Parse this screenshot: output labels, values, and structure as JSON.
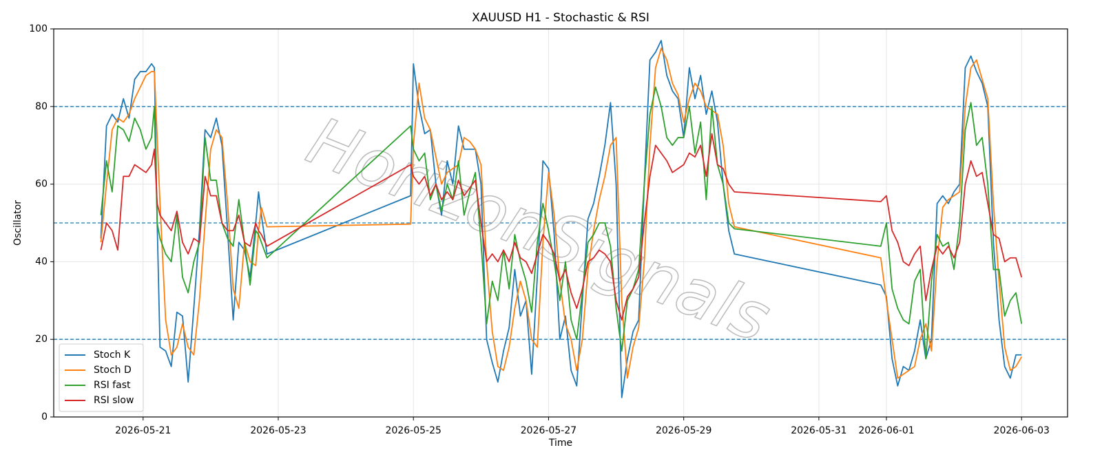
{
  "chart_data": {
    "type": "line",
    "title": "XAUUSD H1 - Stochastic & RSI",
    "x_label": "Time",
    "y_label": "Oscillator",
    "watermark": "HorizonSignals",
    "xlim": [
      "2026-05-19T16:15",
      "2026-06-03T16:20"
    ],
    "xticks": [
      "2026-05-21",
      "2026-05-23",
      "2026-05-25",
      "2026-05-27",
      "2026-05-29",
      "2026-05-31",
      "2026-06-01",
      "2026-06-03"
    ],
    "ylim": [
      0,
      100
    ],
    "yticks": [
      0,
      20,
      40,
      60,
      80,
      100
    ],
    "hlines": [
      20,
      50,
      80
    ],
    "hline_color": "#1f77b4",
    "grid": true,
    "legend": "lower left",
    "x": [
      "2026-05-20T09:00",
      "2026-05-20T11:00",
      "2026-05-20T13:00",
      "2026-05-20T15:00",
      "2026-05-20T17:00",
      "2026-05-20T19:00",
      "2026-05-20T21:00",
      "2026-05-20T23:00",
      "2026-05-21T01:00",
      "2026-05-21T03:00",
      "2026-05-21T04:00",
      "2026-05-21T05:00",
      "2026-05-21T06:00",
      "2026-05-21T08:00",
      "2026-05-21T10:00",
      "2026-05-21T12:00",
      "2026-05-21T14:00",
      "2026-05-21T16:00",
      "2026-05-21T18:00",
      "2026-05-21T20:00",
      "2026-05-21T22:00",
      "2026-05-22T00:00",
      "2026-05-22T02:00",
      "2026-05-22T04:00",
      "2026-05-22T06:00",
      "2026-05-22T08:00",
      "2026-05-22T10:00",
      "2026-05-22T12:00",
      "2026-05-22T14:00",
      "2026-05-22T16:00",
      "2026-05-22T17:00",
      "2026-05-22T18:00",
      "2026-05-22T20:00",
      "2026-05-24T23:00",
      "2026-05-25T00:00",
      "2026-05-25T02:00",
      "2026-05-25T04:00",
      "2026-05-25T06:00",
      "2026-05-25T08:00",
      "2026-05-25T10:00",
      "2026-05-25T12:00",
      "2026-05-25T14:00",
      "2026-05-25T16:00",
      "2026-05-25T18:00",
      "2026-05-25T20:00",
      "2026-05-25T22:00",
      "2026-05-26T00:00",
      "2026-05-26T02:00",
      "2026-05-26T04:00",
      "2026-05-26T06:00",
      "2026-05-26T08:00",
      "2026-05-26T10:00",
      "2026-05-26T12:00",
      "2026-05-26T14:00",
      "2026-05-26T16:00",
      "2026-05-26T18:00",
      "2026-05-26T20:00",
      "2026-05-26T22:00",
      "2026-05-27T00:00",
      "2026-05-27T02:00",
      "2026-05-27T04:00",
      "2026-05-27T06:00",
      "2026-05-27T08:00",
      "2026-05-27T10:00",
      "2026-05-27T12:00",
      "2026-05-27T14:00",
      "2026-05-27T16:00",
      "2026-05-27T18:00",
      "2026-05-27T20:00",
      "2026-05-27T22:00",
      "2026-05-28T00:00",
      "2026-05-28T02:00",
      "2026-05-28T04:00",
      "2026-05-28T06:00",
      "2026-05-28T08:00",
      "2026-05-28T10:00",
      "2026-05-28T12:00",
      "2026-05-28T14:00",
      "2026-05-28T16:00",
      "2026-05-28T18:00",
      "2026-05-28T20:00",
      "2026-05-28T22:00",
      "2026-05-29T00:00",
      "2026-05-29T02:00",
      "2026-05-29T04:00",
      "2026-05-29T06:00",
      "2026-05-29T08:00",
      "2026-05-29T10:00",
      "2026-05-29T12:00",
      "2026-05-29T14:00",
      "2026-05-29T16:00",
      "2026-05-29T18:00",
      "2026-05-31T22:00",
      "2026-06-01T00:00",
      "2026-06-01T02:00",
      "2026-06-01T04:00",
      "2026-06-01T06:00",
      "2026-06-01T08:00",
      "2026-06-01T10:00",
      "2026-06-01T12:00",
      "2026-06-01T14:00",
      "2026-06-01T16:00",
      "2026-06-01T18:00",
      "2026-06-01T20:00",
      "2026-06-01T22:00",
      "2026-06-02T00:00",
      "2026-06-02T02:00",
      "2026-06-02T04:00",
      "2026-06-02T06:00",
      "2026-06-02T08:00",
      "2026-06-02T10:00",
      "2026-06-02T12:00",
      "2026-06-02T14:00",
      "2026-06-02T16:00",
      "2026-06-02T18:00",
      "2026-06-02T20:00",
      "2026-06-02T22:00",
      "2026-06-03T00:00"
    ],
    "series": [
      {
        "name": "Stoch K",
        "color": "#1f77b4",
        "values": [
          46,
          75,
          78,
          76,
          82,
          77,
          87,
          89,
          89,
          91,
          90,
          50,
          18,
          17,
          13,
          27,
          26,
          9,
          28,
          48,
          74,
          72,
          77,
          70,
          48,
          25,
          45,
          43,
          36,
          50,
          58,
          52,
          42,
          57,
          91,
          80,
          73,
          74,
          60,
          52,
          66,
          60,
          75,
          69,
          69,
          69,
          60,
          20,
          14,
          9,
          17,
          23,
          38,
          26,
          30,
          11,
          36,
          66,
          64,
          47,
          20,
          26,
          12,
          8,
          30,
          51,
          55,
          62,
          70,
          81,
          60,
          5,
          15,
          22,
          25,
          60,
          92,
          94,
          97,
          88,
          84,
          82,
          72,
          90,
          82,
          88,
          78,
          84,
          76,
          60,
          48,
          42,
          34,
          31,
          15,
          8,
          13,
          12,
          17,
          25,
          15,
          20,
          55,
          57,
          55,
          58,
          60,
          90,
          93,
          89,
          86,
          80,
          45,
          25,
          13,
          10,
          16,
          16
        ]
      },
      {
        "name": "Stoch D",
        "color": "#ff7f0e",
        "values": [
          45,
          60,
          74,
          77,
          76,
          78,
          82,
          85,
          88,
          89,
          89,
          72,
          55,
          25,
          16,
          18,
          24,
          18,
          16,
          30,
          50,
          69,
          74,
          72,
          55,
          33,
          28,
          45,
          40,
          39,
          48,
          54,
          49,
          49.7,
          70,
          86,
          77,
          74,
          67,
          60,
          63,
          64,
          65,
          72,
          71,
          69,
          65,
          40,
          22,
          13,
          12,
          18,
          28,
          35,
          30,
          20,
          18,
          45,
          63,
          52,
          35,
          24,
          20,
          12,
          20,
          38,
          48,
          56,
          62,
          70,
          72,
          30,
          10,
          18,
          23,
          40,
          70,
          90,
          95,
          92,
          86,
          83,
          76,
          82,
          86,
          84,
          80,
          79,
          78,
          70,
          55,
          49,
          41,
          30,
          20,
          10,
          11,
          12,
          13,
          20,
          24,
          17,
          40,
          54,
          56,
          57,
          58,
          80,
          90,
          92,
          87,
          82,
          55,
          35,
          18,
          12,
          13,
          15.5
        ]
      },
      {
        "name": "RSI fast",
        "color": "#2ca02c",
        "values": [
          52,
          66,
          58,
          75,
          74,
          71,
          77,
          74,
          69,
          72,
          80,
          50,
          46,
          42,
          40,
          52,
          36,
          32,
          40,
          45,
          72,
          61,
          61,
          50,
          46,
          44,
          56,
          45,
          34,
          48,
          47,
          45,
          41,
          75,
          69,
          66,
          68,
          56,
          60,
          53,
          60,
          56,
          66,
          52,
          58,
          63,
          45,
          24,
          35,
          30,
          43,
          33,
          47,
          40,
          35,
          27,
          45,
          55,
          48,
          40,
          30,
          40,
          25,
          20,
          32,
          45,
          47,
          50,
          50,
          44,
          28,
          17,
          30,
          33,
          38,
          60,
          78,
          85,
          80,
          72,
          70,
          72,
          72,
          80,
          68,
          76,
          56,
          80,
          65,
          60,
          50,
          48.5,
          44,
          50,
          33,
          28,
          25,
          24,
          35,
          38,
          15,
          35,
          47,
          44,
          45,
          38,
          50,
          74,
          81,
          70,
          72,
          60,
          38,
          38,
          26,
          30,
          32,
          24
        ]
      },
      {
        "name": "RSI slow",
        "color": "#d62728",
        "values": [
          43,
          50,
          48,
          43,
          62,
          62,
          65,
          64,
          63,
          65,
          69,
          55,
          52,
          50,
          48,
          53,
          45,
          42,
          46,
          45,
          62,
          57,
          57,
          50,
          48,
          48,
          52,
          45,
          44,
          50,
          48,
          47,
          44,
          65,
          62,
          60,
          62,
          57,
          60,
          56,
          58,
          56,
          61,
          57,
          59,
          61,
          50,
          40,
          42,
          40,
          43,
          40,
          45,
          41,
          40,
          37,
          42,
          47,
          45,
          42,
          35,
          38,
          32,
          28,
          33,
          40,
          41,
          43,
          42,
          40,
          30,
          25,
          31,
          33,
          36,
          50,
          62,
          70,
          68,
          66,
          63,
          64,
          65,
          68,
          67,
          70,
          62,
          73,
          65,
          64,
          60,
          58,
          55.5,
          57,
          48,
          45,
          40,
          39,
          42,
          44,
          30,
          38,
          44,
          42,
          44,
          41,
          45,
          60,
          66,
          62,
          63,
          55,
          47,
          46,
          40,
          41,
          41,
          36
        ]
      }
    ]
  }
}
